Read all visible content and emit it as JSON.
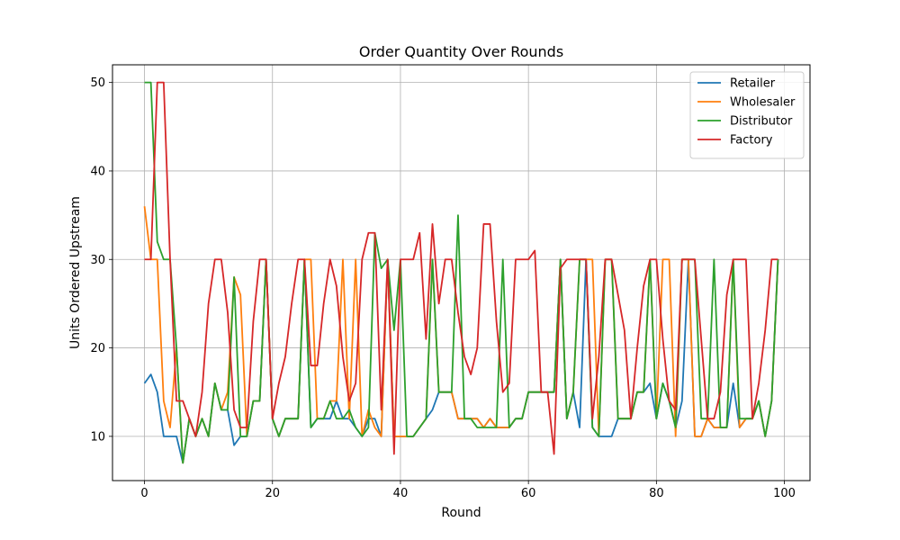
{
  "chart_data": {
    "type": "line",
    "title": "Order Quantity Over Rounds",
    "xlabel": "Round",
    "ylabel": "Units Ordered Upstream",
    "xlim": [
      -5,
      104
    ],
    "ylim": [
      5,
      52
    ],
    "xticks": [
      0,
      20,
      40,
      60,
      80,
      100
    ],
    "yticks": [
      10,
      20,
      30,
      40,
      50
    ],
    "grid": true,
    "legend_position": "top-right",
    "x": [
      0,
      1,
      2,
      3,
      4,
      5,
      6,
      7,
      8,
      9,
      10,
      11,
      12,
      13,
      14,
      15,
      16,
      17,
      18,
      19,
      20,
      21,
      22,
      23,
      24,
      25,
      26,
      27,
      28,
      29,
      30,
      31,
      32,
      33,
      34,
      35,
      36,
      37,
      38,
      39,
      40,
      41,
      42,
      43,
      44,
      45,
      46,
      47,
      48,
      49,
      50,
      51,
      52,
      53,
      54,
      55,
      56,
      57,
      58,
      59,
      60,
      61,
      62,
      63,
      64,
      65,
      66,
      67,
      68,
      69,
      70,
      71,
      72,
      73,
      74,
      75,
      76,
      77,
      78,
      79,
      80,
      81,
      82,
      83,
      84,
      85,
      86,
      87,
      88,
      89,
      90,
      91,
      92,
      93,
      94,
      95,
      96,
      97,
      98,
      99
    ],
    "series": [
      {
        "name": "Retailer",
        "color": "#1f77b4",
        "values": [
          16,
          17,
          15,
          10,
          10,
          10,
          7,
          12,
          10,
          12,
          10,
          16,
          13,
          13,
          9,
          10,
          10,
          14,
          14,
          30,
          12,
          10,
          12,
          12,
          12,
          30,
          11,
          12,
          12,
          12,
          14,
          12,
          12,
          11,
          10,
          12,
          12,
          10,
          30,
          10,
          10,
          10,
          10,
          11,
          12,
          13,
          15,
          15,
          15,
          12,
          12,
          12,
          12,
          11,
          12,
          11,
          11,
          11,
          12,
          12,
          15,
          15,
          15,
          15,
          15,
          30,
          12,
          15,
          11,
          30,
          11,
          10,
          10,
          10,
          12,
          12,
          12,
          15,
          15,
          16,
          12,
          16,
          14,
          11,
          14,
          30,
          10,
          10,
          12,
          11,
          11,
          11,
          16,
          11,
          12,
          12,
          14,
          10,
          14,
          30
        ]
      },
      {
        "name": "Wholesaler",
        "color": "#ff7f0e",
        "values": [
          36,
          30,
          30,
          14,
          11,
          20,
          7,
          12,
          10,
          12,
          10,
          16,
          13,
          15,
          28,
          26,
          10,
          14,
          14,
          30,
          12,
          10,
          12,
          12,
          12,
          30,
          30,
          12,
          12,
          14,
          14,
          30,
          12,
          30,
          10,
          13,
          11,
          10,
          30,
          10,
          10,
          10,
          10,
          11,
          12,
          30,
          15,
          15,
          15,
          12,
          12,
          12,
          12,
          11,
          12,
          11,
          11,
          11,
          12,
          12,
          15,
          15,
          15,
          15,
          15,
          30,
          12,
          15,
          30,
          30,
          30,
          10,
          30,
          30,
          12,
          12,
          12,
          15,
          15,
          30,
          12,
          30,
          30,
          10,
          30,
          30,
          10,
          10,
          12,
          11,
          11,
          11,
          30,
          11,
          12,
          12,
          14,
          10,
          14,
          30
        ]
      },
      {
        "name": "Distributor",
        "color": "#2ca02c",
        "values": [
          50,
          50,
          32,
          30,
          30,
          20,
          7,
          12,
          10,
          12,
          10,
          16,
          13,
          13,
          28,
          10,
          10,
          14,
          14,
          30,
          12,
          10,
          12,
          12,
          12,
          30,
          11,
          12,
          12,
          14,
          12,
          12,
          13,
          11,
          10,
          11,
          33,
          29,
          30,
          22,
          30,
          10,
          10,
          11,
          12,
          30,
          15,
          15,
          15,
          35,
          12,
          12,
          11,
          11,
          11,
          11,
          30,
          11,
          12,
          12,
          15,
          15,
          15,
          15,
          15,
          30,
          12,
          15,
          30,
          30,
          11,
          10,
          30,
          30,
          12,
          12,
          12,
          15,
          15,
          30,
          12,
          16,
          14,
          11,
          30,
          30,
          30,
          12,
          12,
          30,
          11,
          11,
          30,
          12,
          12,
          12,
          14,
          10,
          14,
          30
        ]
      },
      {
        "name": "Factory",
        "color": "#d62728",
        "values": [
          30,
          30,
          50,
          50,
          30,
          14,
          14,
          12,
          10,
          15,
          25,
          30,
          30,
          24,
          13,
          11,
          11,
          23,
          30,
          30,
          12,
          16,
          19,
          25,
          30,
          30,
          18,
          18,
          25,
          30,
          27,
          19,
          14,
          16,
          30,
          33,
          33,
          13,
          30,
          8,
          30,
          30,
          30,
          33,
          21,
          34,
          25,
          30,
          30,
          24,
          19,
          17,
          20,
          34,
          34,
          23,
          15,
          16,
          30,
          30,
          30,
          31,
          15,
          15,
          8,
          29,
          30,
          30,
          30,
          30,
          12,
          19,
          30,
          30,
          26,
          22,
          12,
          20,
          27,
          30,
          30,
          21,
          14,
          13,
          30,
          30,
          30,
          21,
          12,
          12,
          15,
          26,
          30,
          30,
          30,
          12,
          16,
          22,
          30,
          30
        ]
      }
    ]
  }
}
